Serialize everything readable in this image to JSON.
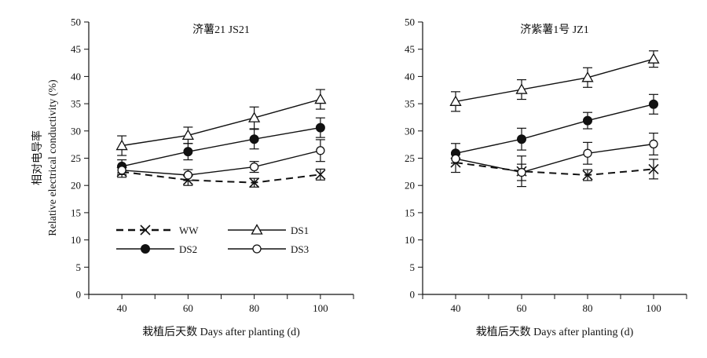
{
  "figure": {
    "ylabel": "相对电导率\nRelative electrical conductivity (%)",
    "legend": [
      {
        "name": "WW",
        "marker": "x",
        "dash": true
      },
      {
        "name": "DS1",
        "marker": "triangle",
        "dash": false
      },
      {
        "name": "DS2",
        "marker": "filled-circle",
        "dash": false
      },
      {
        "name": "DS3",
        "marker": "open-circle",
        "dash": false
      }
    ],
    "legend_placement": "lower-left of left panel",
    "colors": {
      "ink": "#111111",
      "background": "#ffffff"
    }
  },
  "chart_data": [
    {
      "type": "line",
      "title": "济薯21 JS21",
      "xlabel": "栽植后天数 Days after planting (d)",
      "ylabel": "相对电导率 Relative electrical conductivity (%)",
      "x": [
        40,
        60,
        80,
        100
      ],
      "xlim": [
        30,
        110
      ],
      "ylim": [
        0,
        50
      ],
      "yticks": [
        0,
        5,
        10,
        15,
        20,
        25,
        30,
        35,
        40,
        45,
        50
      ],
      "xticks": [
        40,
        60,
        80,
        100
      ],
      "grid": false,
      "series": [
        {
          "name": "WW",
          "marker": "x",
          "dash": true,
          "values": [
            22.5,
            21.0,
            20.5,
            22.0
          ],
          "errors": [
            1.0,
            1.0,
            0.8,
            1.0
          ]
        },
        {
          "name": "DS1",
          "marker": "triangle",
          "dash": false,
          "values": [
            27.3,
            29.2,
            32.4,
            35.8
          ],
          "errors": [
            1.8,
            1.5,
            2.0,
            1.8
          ]
        },
        {
          "name": "DS2",
          "marker": "filled-circle",
          "dash": false,
          "values": [
            23.5,
            26.2,
            28.5,
            30.6
          ],
          "errors": [
            1.2,
            1.5,
            1.8,
            1.8
          ]
        },
        {
          "name": "DS3",
          "marker": "open-circle",
          "dash": false,
          "values": [
            22.8,
            21.9,
            23.4,
            26.4
          ],
          "errors": [
            0.8,
            1.0,
            1.0,
            2.0
          ]
        }
      ]
    },
    {
      "type": "line",
      "title": "济紫薯1号 JZ1",
      "xlabel": "栽植后天数 Days after planting (d)",
      "ylabel": "",
      "x": [
        40,
        60,
        80,
        100
      ],
      "xlim": [
        30,
        110
      ],
      "ylim": [
        0,
        50
      ],
      "yticks": [
        0,
        5,
        10,
        15,
        20,
        25,
        30,
        35,
        40,
        45,
        50
      ],
      "xticks": [
        40,
        60,
        80,
        100
      ],
      "grid": false,
      "series": [
        {
          "name": "WW",
          "marker": "x",
          "dash": true,
          "values": [
            24.2,
            22.6,
            21.9,
            23.0
          ],
          "errors": [
            1.8,
            2.8,
            1.0,
            1.8
          ]
        },
        {
          "name": "DS1",
          "marker": "triangle",
          "dash": false,
          "values": [
            35.4,
            37.6,
            39.8,
            43.2
          ],
          "errors": [
            1.8,
            1.8,
            1.8,
            1.5
          ]
        },
        {
          "name": "DS2",
          "marker": "filled-circle",
          "dash": false,
          "values": [
            25.9,
            28.5,
            31.9,
            34.9
          ],
          "errors": [
            1.8,
            2.0,
            1.5,
            1.8
          ]
        },
        {
          "name": "DS3",
          "marker": "open-circle",
          "dash": false,
          "values": [
            24.9,
            22.4,
            25.9,
            27.6
          ],
          "errors": [
            0.8,
            1.5,
            2.0,
            2.0
          ]
        }
      ]
    }
  ]
}
